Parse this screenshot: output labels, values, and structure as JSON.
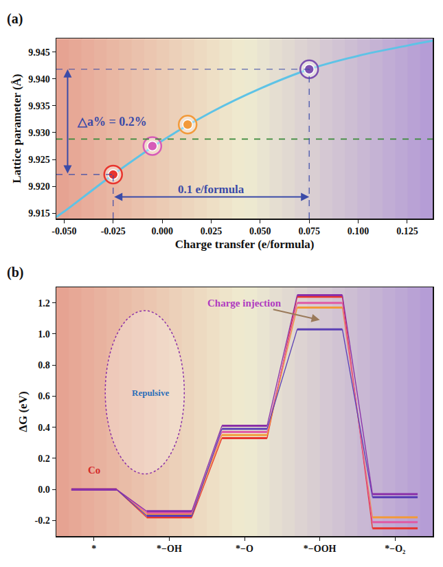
{
  "chart_data": [
    {
      "type": "line",
      "panel": "(a)",
      "x_label": "Charge transfer (e/formula)",
      "y_label": "Lattice parameter (Å)",
      "x": [
        -0.054,
        -0.05,
        -0.025,
        0,
        0.025,
        0.05,
        0.075,
        0.1,
        0.125,
        0.138
      ],
      "values": [
        9.9143,
        9.9153,
        9.9222,
        9.9285,
        9.9338,
        9.9382,
        9.9418,
        9.9443,
        9.9462,
        9.9471
      ],
      "color": "#5ec3e6",
      "points": {
        "x": [
          -0.025,
          -0.005,
          0.013,
          0.075
        ],
        "values": [
          9.9222,
          9.9275,
          9.9315,
          9.9418
        ],
        "colors": [
          "#e8352e",
          "#d65bb8",
          "#f29a3a",
          "#7c4fb0"
        ]
      },
      "reference_line": {
        "value": 9.9288,
        "color": "#3a8a3a",
        "line_style": "dash"
      },
      "annotations": [
        {
          "text": "△a% = 0.2%"
        },
        {
          "text": "0.1 e/formula"
        }
      ],
      "xlim": [
        -0.054,
        0.138
      ],
      "xticks": [
        {
          "value": -0.05,
          "label": "-0.050"
        },
        {
          "value": -0.025,
          "label": "-0.025"
        },
        {
          "value": 0,
          "label": "0.000"
        },
        {
          "value": 0.025,
          "label": "0.025"
        },
        {
          "value": 0.05,
          "label": "0.050"
        },
        {
          "value": 0.075,
          "label": "0.075"
        },
        {
          "value": 0.1,
          "label": "0.100"
        },
        {
          "value": 0.125,
          "label": "0.125"
        }
      ],
      "ylim": [
        9.914,
        9.9475
      ],
      "yticks": [
        9.915,
        {
          "value": 9.92,
          "label": "9.920"
        },
        9.925,
        {
          "value": 9.93,
          "label": "9.930"
        },
        9.935,
        {
          "value": 9.94,
          "label": "9.940"
        },
        9.945
      ],
      "grid": false
    },
    {
      "type": "line",
      "panel": "(b)",
      "y_label": "ΔG (eV)",
      "categories": [
        "*",
        "*−OH",
        "*−O",
        "*−OOH",
        "*−O₂"
      ],
      "series": [
        {
          "color": "#e8352e",
          "values": [
            0,
            -0.18,
            0.33,
            1.24,
            -0.25
          ]
        },
        {
          "color": "#f29a3a",
          "values": [
            0,
            -0.16,
            0.35,
            1.17,
            -0.18
          ]
        },
        {
          "color": "#e05aa5",
          "values": [
            0,
            -0.15,
            0.37,
            1.2,
            -0.21
          ]
        },
        {
          "color": "#5a3fb5",
          "values": [
            0,
            -0.17,
            0.39,
            1.03,
            -0.05
          ]
        },
        {
          "color": "#8a2fa8",
          "values": [
            0,
            -0.14,
            0.41,
            1.25,
            -0.03
          ]
        }
      ],
      "annotations": [
        {
          "text": "Co"
        },
        {
          "text": "Charge injection"
        },
        {
          "text": "Repulsive"
        }
      ],
      "ylim": [
        -0.3,
        1.3
      ],
      "yticks": [
        {
          "value": -0.2,
          "label": "-0.2"
        },
        {
          "value": 0,
          "label": "0.0"
        },
        0.2,
        0.4,
        0.6,
        0.8,
        {
          "value": 1,
          "label": "1.0"
        },
        1.2
      ],
      "grid": false
    }
  ]
}
